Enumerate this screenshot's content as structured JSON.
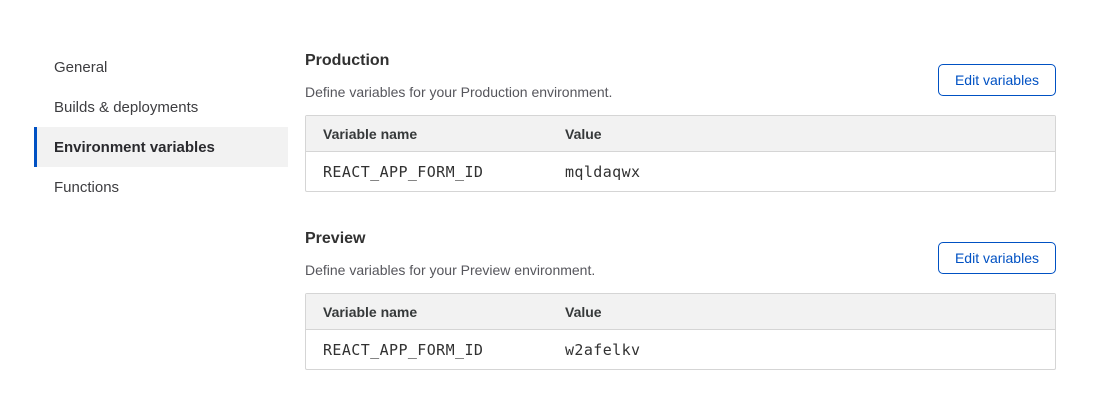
{
  "sidebar": {
    "items": [
      {
        "label": "General",
        "active": false
      },
      {
        "label": "Builds & deployments",
        "active": false
      },
      {
        "label": "Environment variables",
        "active": true
      },
      {
        "label": "Functions",
        "active": false
      }
    ]
  },
  "sections": [
    {
      "title": "Production",
      "description": "Define variables for your Production environment.",
      "button_label": "Edit variables",
      "table": {
        "columns": [
          "Variable name",
          "Value"
        ],
        "rows": [
          {
            "name": "REACT_APP_FORM_ID",
            "value": "mqldaqwx"
          }
        ]
      }
    },
    {
      "title": "Preview",
      "description": "Define variables for your Preview environment.",
      "button_label": "Edit variables",
      "table": {
        "columns": [
          "Variable name",
          "Value"
        ],
        "rows": [
          {
            "name": "REACT_APP_FORM_ID",
            "value": "w2afelkv"
          }
        ]
      }
    }
  ],
  "colors": {
    "accent_blue": "#0051c3",
    "active_item_background": "#f2f2f2",
    "table_header_background": "#f2f2f2",
    "table_border": "#d5d5d5",
    "heading_text": "#313131",
    "body_text": "#56565c"
  }
}
